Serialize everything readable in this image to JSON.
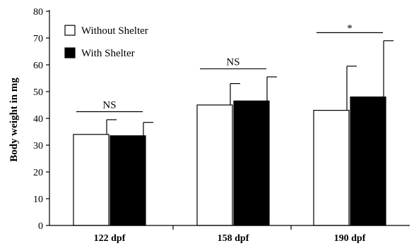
{
  "chart_data": {
    "type": "bar",
    "ylabel": "Body weight in mg",
    "ylim": [
      0,
      80
    ],
    "yticks": [
      0,
      10,
      20,
      30,
      40,
      50,
      60,
      70,
      80
    ],
    "categories": [
      "122 dpf",
      "158 dpf",
      "190 dpf"
    ],
    "series": [
      {
        "name": "Without Shelter",
        "color": "#ffffff",
        "values": [
          34,
          45,
          43
        ],
        "errors": [
          5.5,
          8,
          16.5
        ]
      },
      {
        "name": "With Shelter",
        "color": "#000000",
        "values": [
          33.5,
          46.5,
          48
        ],
        "errors": [
          5,
          9,
          21
        ]
      }
    ],
    "significance": [
      "NS",
      "NS",
      "*"
    ],
    "grid": false,
    "legend_position": "top-left"
  }
}
